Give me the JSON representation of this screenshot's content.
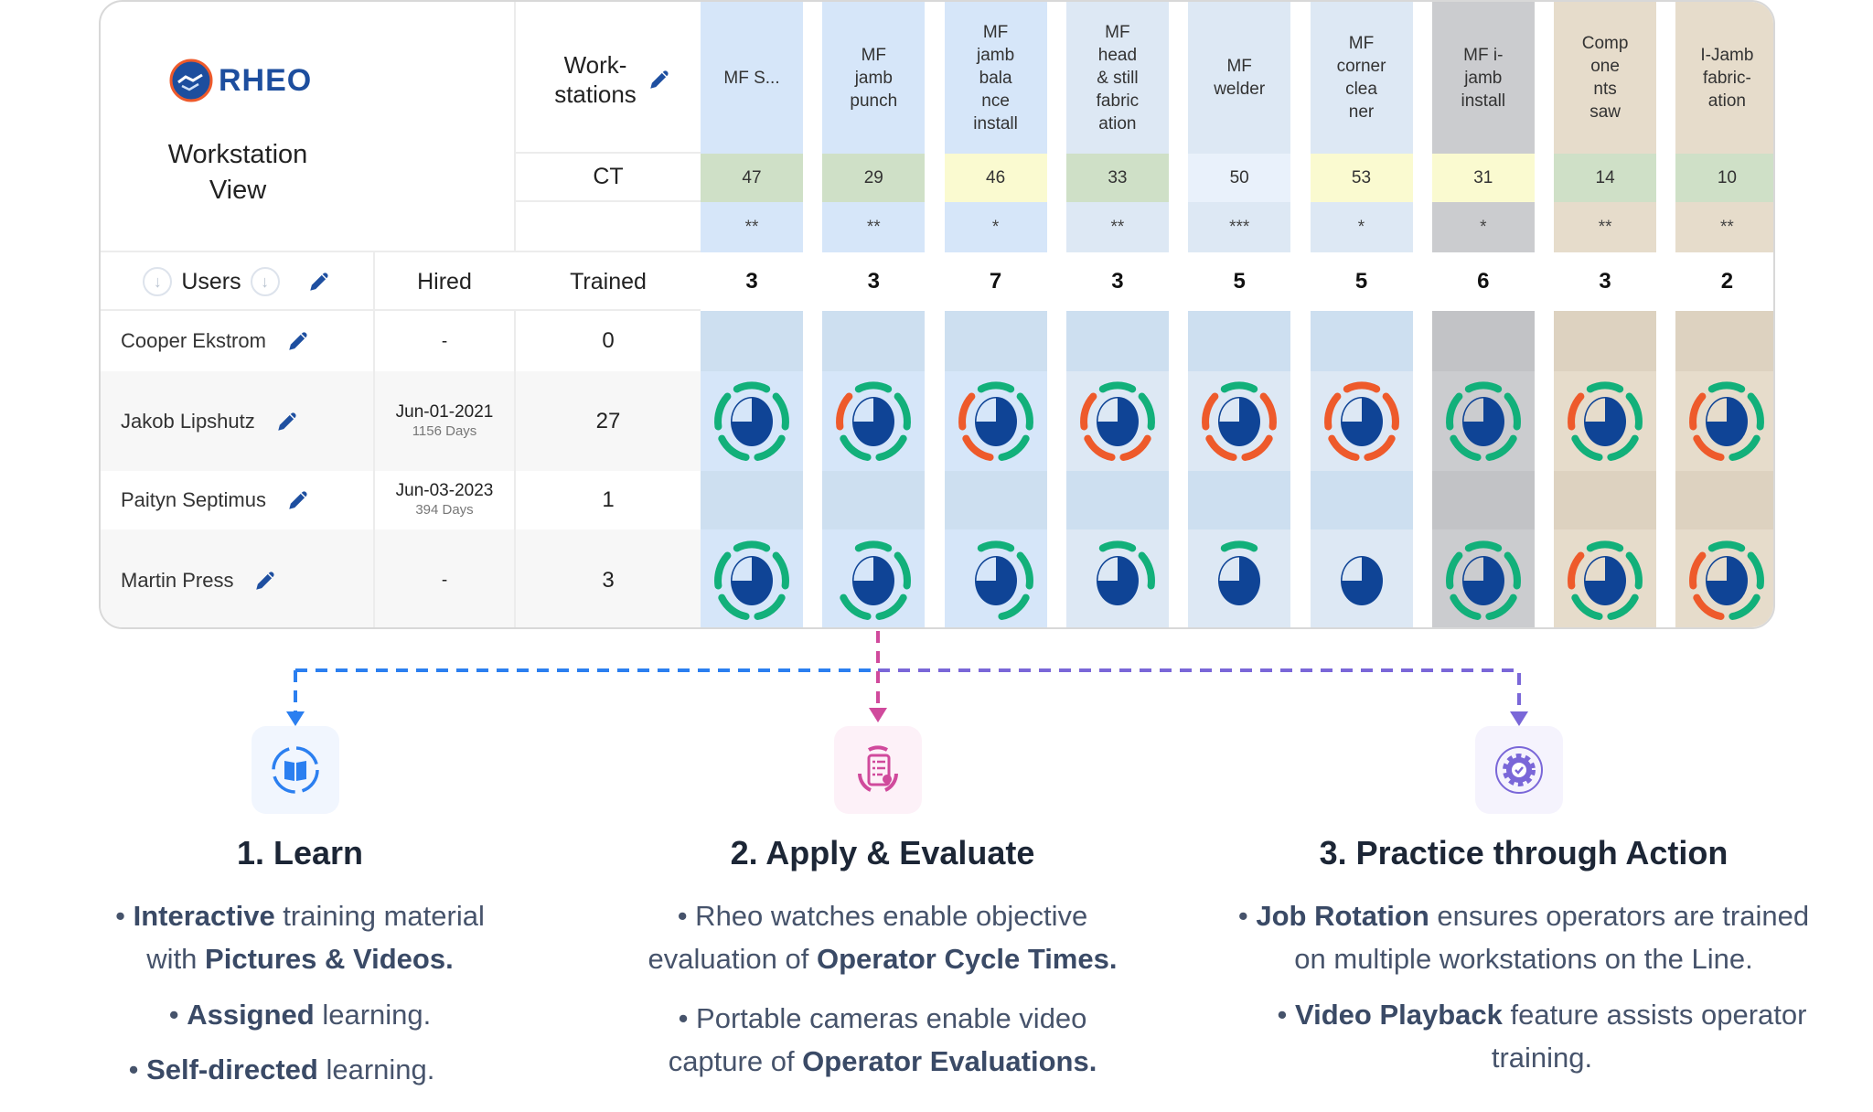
{
  "brand": {
    "logo_text": "RHEO",
    "view_title_line1": "Workstation",
    "view_title_line2": "View"
  },
  "header": {
    "workstations_line1": "Work-",
    "workstations_line2": "stations",
    "ct_label": "CT",
    "users_label": "Users",
    "hired_label": "Hired",
    "trained_label": "Trained"
  },
  "workstations": [
    {
      "name": "MF S...",
      "ct": "47",
      "stars": "**",
      "count": "3",
      "col_color": "#d6e6f9",
      "row_color": "#cddff0",
      "ct_color": "#cfe0c7"
    },
    {
      "name": "MF\njamb\npunch",
      "ct": "29",
      "stars": "**",
      "count": "3",
      "col_color": "#d6e6f9",
      "row_color": "#cddff0",
      "ct_color": "#cfe0c7"
    },
    {
      "name": "MF\njamb\nbala\nnce\ninstall",
      "ct": "46",
      "stars": "*",
      "count": "7",
      "col_color": "#d6e6f9",
      "row_color": "#cddff0",
      "ct_color": "#fafad0"
    },
    {
      "name": "MF\nhead\n& still\nfabric\nation",
      "ct": "33",
      "stars": "**",
      "count": "3",
      "col_color": "#dde8f4",
      "row_color": "#cddff0",
      "ct_color": "#cfe0c7"
    },
    {
      "name": "MF\nwelder",
      "ct": "50",
      "stars": "***",
      "count": "5",
      "col_color": "#dde8f4",
      "row_color": "#cddff0",
      "ct_color": "#e9f1fb"
    },
    {
      "name": "MF\ncorner\nclea\nner",
      "ct": "53",
      "stars": "*",
      "count": "5",
      "col_color": "#dde8f4",
      "row_color": "#cddff0",
      "ct_color": "#fafad0"
    },
    {
      "name": "MF i-\njamb\ninstall",
      "ct": "31",
      "stars": "*",
      "count": "6",
      "col_color": "#cbcccf",
      "row_color": "#c2c3c6",
      "ct_color": "#fafad0"
    },
    {
      "name": "Comp\none\nnts\nsaw",
      "ct": "14",
      "stars": "**",
      "count": "3",
      "col_color": "#e6dccb",
      "row_color": "#ddd2c0",
      "ct_color": "#cfe0c7"
    },
    {
      "name": "I-Jamb\nfabric-\nation",
      "ct": "10",
      "stars": "**",
      "count": "2",
      "col_color": "#e6dccb",
      "row_color": "#ddd2c0",
      "ct_color": "#cfe0c7"
    }
  ],
  "users": [
    {
      "name": "Cooper Ekstrom",
      "hired": "-",
      "days": "",
      "trained": "0",
      "rings": null
    },
    {
      "name": "Jakob Lipshutz",
      "hired": "Jun-01-2021",
      "days": "1156 Days",
      "trained": "27",
      "rings": [
        [
          "g",
          "g",
          "g",
          "g",
          "g"
        ],
        [
          "g",
          "g",
          "g",
          "g",
          "o"
        ],
        [
          "g",
          "g",
          "g",
          "o",
          "o"
        ],
        [
          "g",
          "g",
          "o",
          "o",
          "o"
        ],
        [
          "g",
          "o",
          "o",
          "o",
          "o"
        ],
        [
          "o",
          "o",
          "o",
          "o",
          "o"
        ],
        [
          "g",
          "g",
          "g",
          "g",
          "g"
        ],
        [
          "g",
          "g",
          "g",
          "g",
          "o"
        ],
        [
          "g",
          "g",
          "g",
          "o",
          "o"
        ]
      ]
    },
    {
      "name": "Paityn Septimus",
      "hired": "Jun-03-2023",
      "days": "394 Days",
      "trained": "1",
      "rings": null
    },
    {
      "name": "Martin Press",
      "hired": "-",
      "days": "",
      "trained": "3",
      "rings": [
        [
          "g",
          "g",
          "g",
          "g",
          "g"
        ],
        [
          "g",
          "g",
          "g",
          "g"
        ],
        [
          "g",
          "g",
          "g"
        ],
        [
          "g",
          "g"
        ],
        [
          "g"
        ],
        [],
        [
          "g",
          "g",
          "g",
          "g",
          "g"
        ],
        [
          "g",
          "g",
          "g",
          "g",
          "o"
        ],
        [
          "g",
          "g",
          "g",
          "o",
          "o"
        ]
      ]
    }
  ],
  "colors": {
    "green": "#12b07a",
    "orange": "#ee5a2b",
    "pie_blue": "#0f4496",
    "pencil_blue": "#1e4fa0",
    "learn_blue": "#2b7ff0",
    "apply_pink": "#d04a9c",
    "practice_purple": "#7a67d8"
  },
  "steps": [
    {
      "title": "1. Learn",
      "icon": "book-cycle-icon",
      "lines": [
        [
          {
            "b": "Interactive"
          },
          {
            "t": " training material"
          }
        ],
        [
          {
            "t": "with "
          },
          {
            "b": "Pictures & Videos."
          }
        ],
        [
          {
            "t": "• "
          },
          {
            "b": "Assigned"
          },
          {
            "t": " learning."
          }
        ],
        [
          {
            "t": "• "
          },
          {
            "b": "Self-directed"
          },
          {
            "t": " learning."
          }
        ]
      ]
    },
    {
      "title": "2. Apply & Evaluate",
      "icon": "clipboard-evaluate-icon",
      "lines": [
        [
          {
            "t": "• Rheo watches enable objective"
          }
        ],
        [
          {
            "t": "evaluation of "
          },
          {
            "b": "Operator Cycle Times."
          }
        ],
        [
          {
            "t": "• Portable cameras enable video"
          }
        ],
        [
          {
            "t": "capture of "
          },
          {
            "b": "Operator Evaluations."
          }
        ]
      ]
    },
    {
      "title": "3. Practice through Action",
      "icon": "gear-check-icon",
      "lines": [
        [
          {
            "t": "• "
          },
          {
            "b": "Job Rotation"
          },
          {
            "t": " ensures operators are trained"
          }
        ],
        [
          {
            "t": "on multiple workstations on the Line."
          }
        ],
        [
          {
            "t": "• "
          },
          {
            "b": "Video Playback"
          },
          {
            "t": " feature assists operator"
          }
        ],
        [
          {
            "t": "training."
          }
        ]
      ]
    }
  ]
}
